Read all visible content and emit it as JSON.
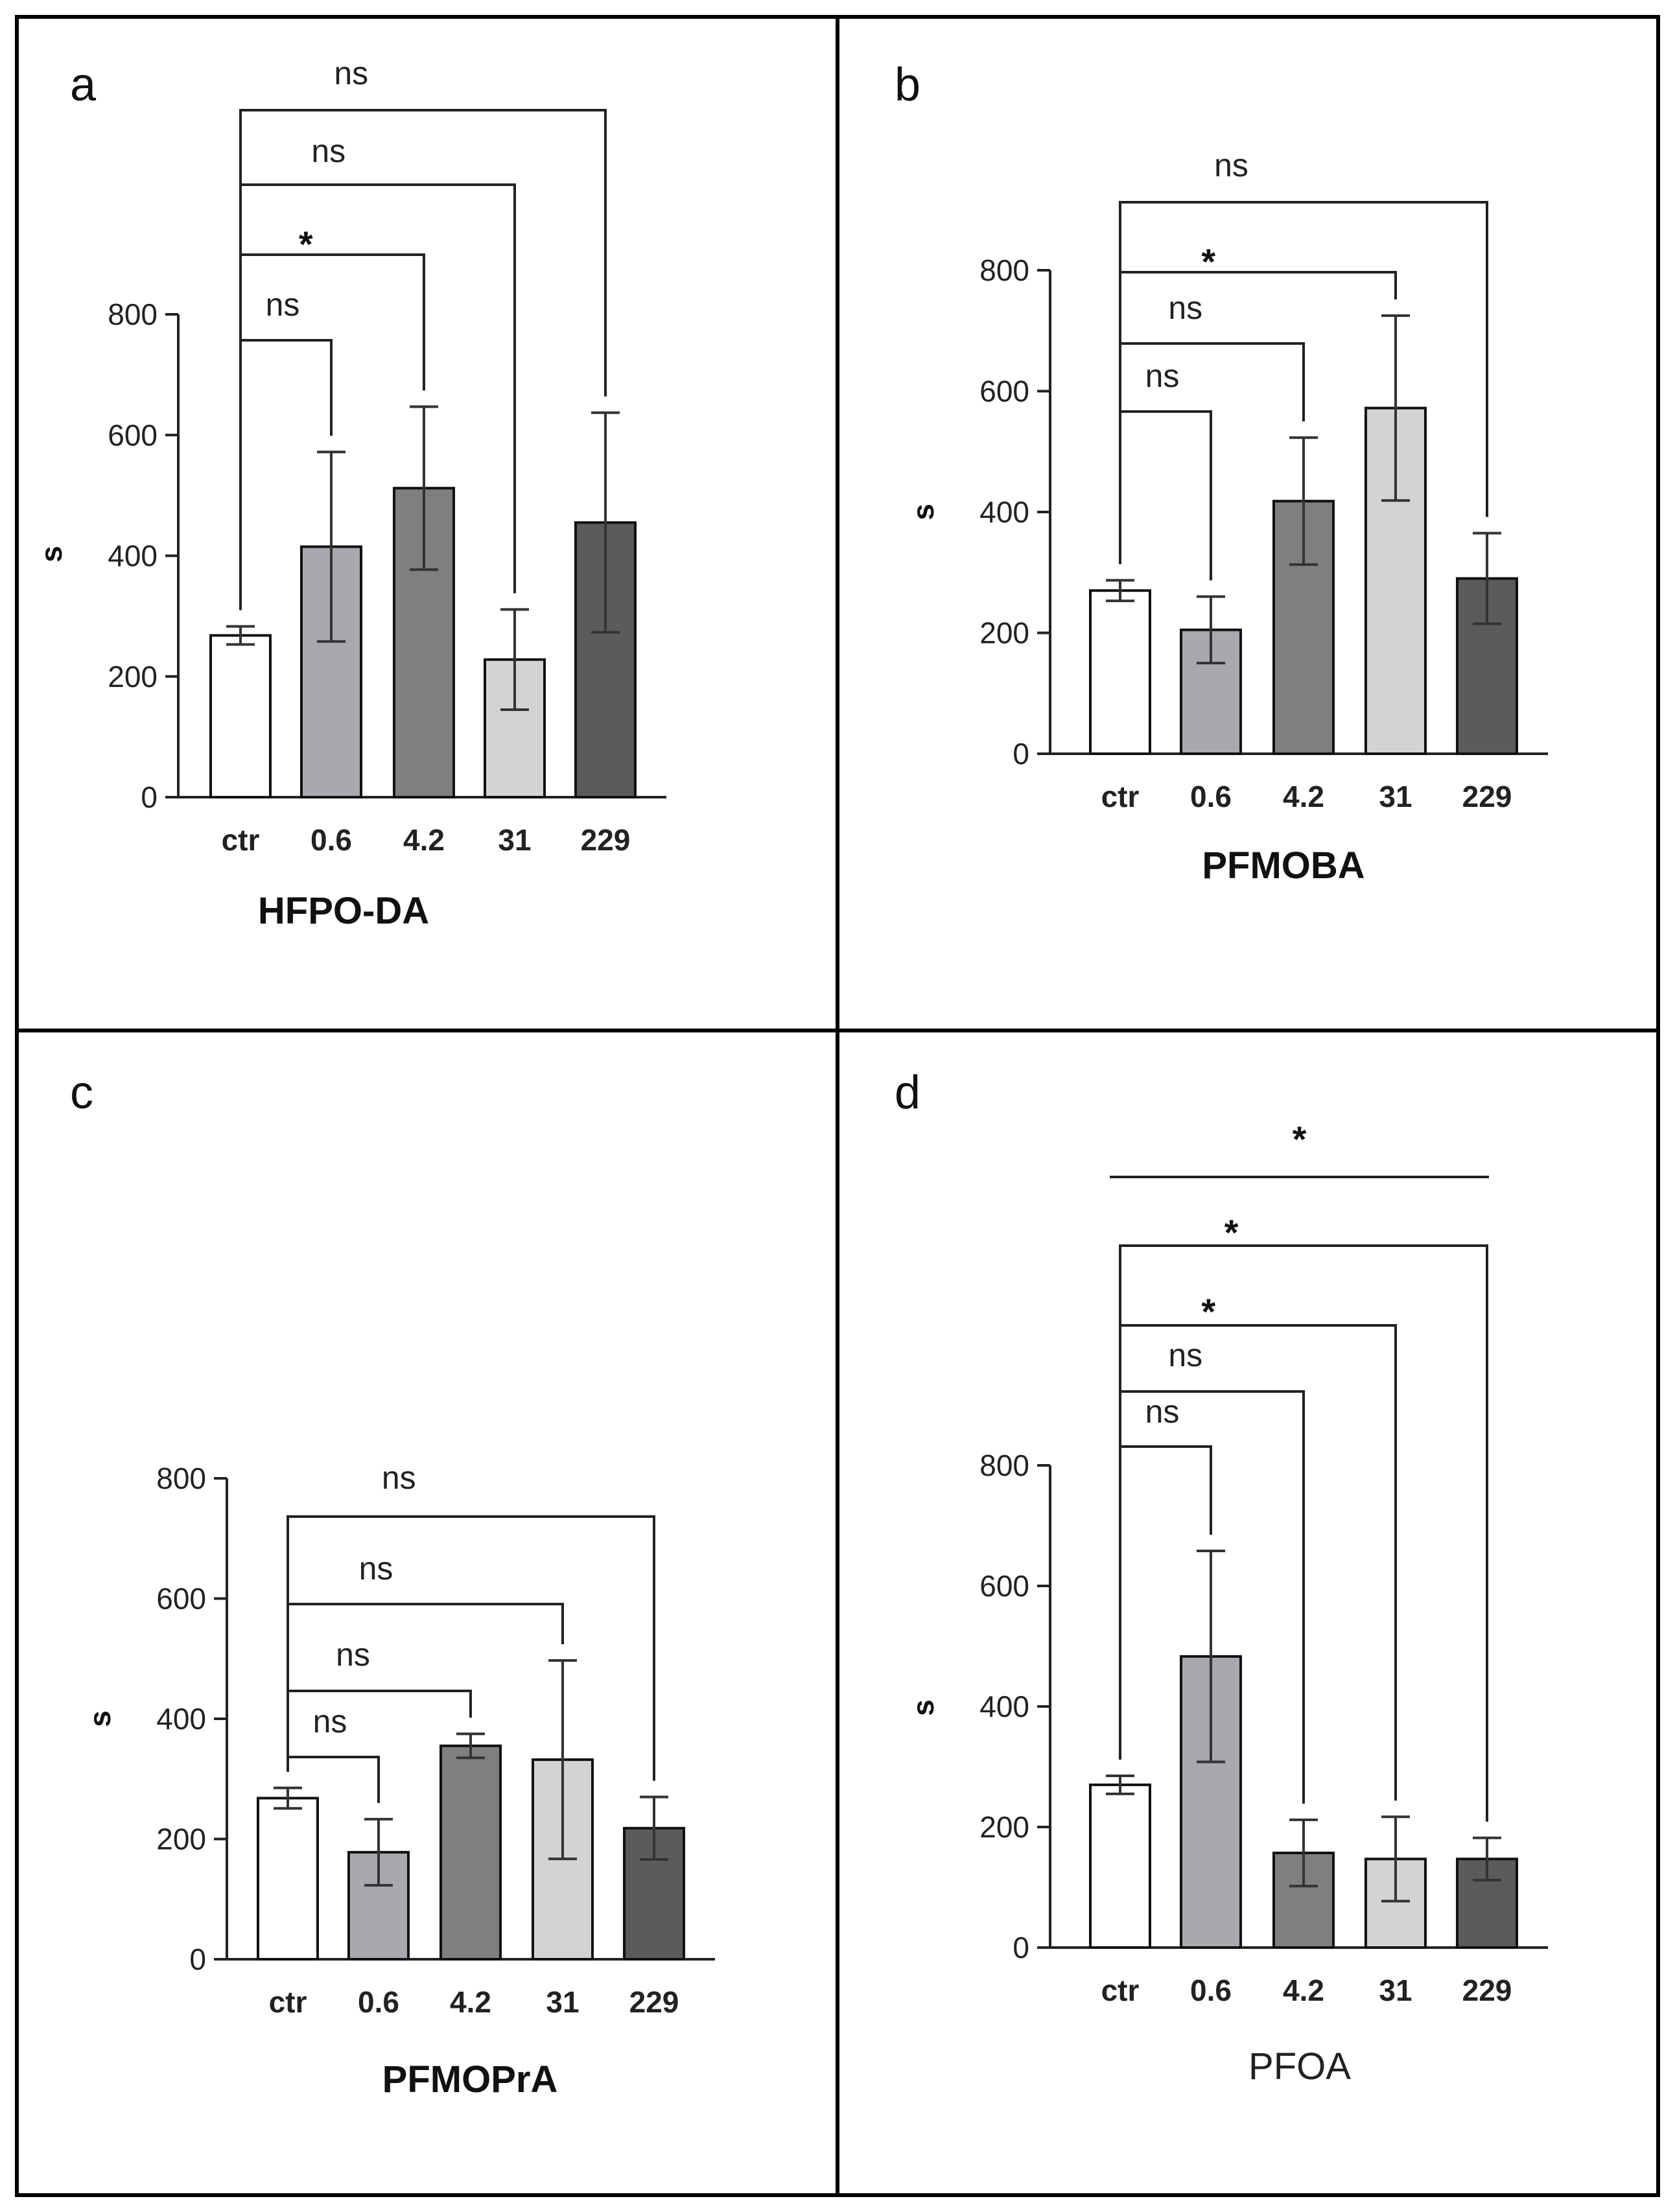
{
  "chart_data": [
    {
      "panel": "a",
      "type": "bar",
      "xlabel": "HFPO-DA",
      "ylabel": "s",
      "ylim": [
        0,
        800
      ],
      "yticks": [
        0,
        200,
        400,
        600,
        800
      ],
      "categories": [
        "ctr",
        "0.6",
        "4.2",
        "31",
        "229"
      ],
      "values": [
        268,
        415,
        512,
        228,
        455
      ],
      "errors": [
        15,
        157,
        135,
        83,
        182
      ],
      "colors": [
        "#ffffff",
        "#a8a8ae",
        "#7f7f7f",
        "#d3d3d3",
        "#5b5b5b"
      ],
      "comparisons": [
        {
          "from": "ctr",
          "to": "0.6",
          "label": "ns"
        },
        {
          "from": "ctr",
          "to": "4.2",
          "label": "*"
        },
        {
          "from": "ctr",
          "to": "31",
          "label": "ns"
        },
        {
          "from": "ctr",
          "to": "229",
          "label": "ns"
        }
      ]
    },
    {
      "panel": "b",
      "type": "bar",
      "xlabel": "PFMOBA",
      "ylabel": "s",
      "ylim": [
        0,
        800
      ],
      "yticks": [
        0,
        200,
        400,
        600,
        800
      ],
      "categories": [
        "ctr",
        "0.6",
        "4.2",
        "31",
        "229"
      ],
      "values": [
        270,
        205,
        418,
        572,
        290
      ],
      "errors": [
        17,
        55,
        105,
        153,
        75
      ],
      "colors": [
        "#ffffff",
        "#a8a8ae",
        "#7f7f7f",
        "#d3d3d3",
        "#5b5b5b"
      ],
      "comparisons": [
        {
          "from": "ctr",
          "to": "0.6",
          "label": "ns"
        },
        {
          "from": "ctr",
          "to": "4.2",
          "label": "ns"
        },
        {
          "from": "ctr",
          "to": "31",
          "label": "*"
        },
        {
          "from": "ctr",
          "to": "229",
          "label": "ns"
        }
      ]
    },
    {
      "panel": "c",
      "type": "bar",
      "xlabel": "PFMOPrA",
      "ylabel": "s",
      "ylim": [
        0,
        800
      ],
      "yticks": [
        0,
        200,
        400,
        600,
        800
      ],
      "categories": [
        "ctr",
        "0.6",
        "4.2",
        "31",
        "229"
      ],
      "values": [
        268,
        178,
        355,
        332,
        218
      ],
      "errors": [
        17,
        55,
        20,
        165,
        52
      ],
      "colors": [
        "#ffffff",
        "#a8a8ae",
        "#7f7f7f",
        "#d3d3d3",
        "#5b5b5b"
      ],
      "comparisons": [
        {
          "from": "ctr",
          "to": "0.6",
          "label": "ns"
        },
        {
          "from": "ctr",
          "to": "4.2",
          "label": "ns"
        },
        {
          "from": "ctr",
          "to": "31",
          "label": "ns"
        },
        {
          "from": "ctr",
          "to": "229",
          "label": "ns"
        }
      ]
    },
    {
      "panel": "d",
      "type": "bar",
      "xlabel": "PFOA",
      "ylabel": "s",
      "ylim": [
        0,
        800
      ],
      "yticks": [
        0,
        200,
        400,
        600,
        800
      ],
      "categories": [
        "ctr",
        "0.6",
        "4.2",
        "31",
        "229"
      ],
      "values": [
        270,
        483,
        157,
        147,
        147
      ],
      "errors": [
        15,
        175,
        55,
        70,
        35
      ],
      "colors": [
        "#ffffff",
        "#a8a8ae",
        "#7f7f7f",
        "#d3d3d3",
        "#5b5b5b"
      ],
      "comparisons": [
        {
          "from": "ctr",
          "to": "0.6",
          "label": "ns"
        },
        {
          "from": "ctr",
          "to": "4.2",
          "label": "ns"
        },
        {
          "from": "ctr",
          "to": "31",
          "label": "*"
        },
        {
          "from": "ctr",
          "to": "229",
          "label": "*"
        }
      ],
      "extra_line_label": "*"
    }
  ]
}
